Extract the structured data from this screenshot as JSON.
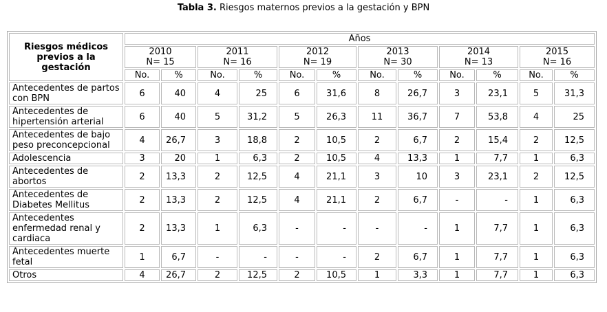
{
  "caption": {
    "label": "Tabla 3.",
    "text": " Riesgos maternos previos a la gestación y BPN"
  },
  "table": {
    "corner_header": "Riesgos médicos previos a la gestación",
    "group_header": "Años",
    "years": [
      {
        "year": "2010",
        "n": "N= 15"
      },
      {
        "year": "2011",
        "n": "N= 16"
      },
      {
        "year": "2012",
        "n": "N= 19"
      },
      {
        "year": "2013",
        "n": "N= 30"
      },
      {
        "year": "2014",
        "n": "N= 13"
      },
      {
        "year": "2015",
        "n": "N= 16"
      }
    ],
    "sub_headers": {
      "count": "No.",
      "percent": "%"
    },
    "rows": [
      {
        "label": "Antecedentes  de partos con BPN",
        "cells": [
          "6",
          "40",
          "4",
          "25",
          "6",
          "31,6",
          "8",
          "26,7",
          "3",
          "23,1",
          "5",
          "31,3"
        ]
      },
      {
        "label": "Antecedentes de hipertensión arterial",
        "cells": [
          "6",
          "40",
          "5",
          "31,2",
          "5",
          "26,3",
          "11",
          "36,7",
          "7",
          "53,8",
          "4",
          "25"
        ]
      },
      {
        "label": "Antecedentes de bajo peso preconcepcional",
        "cells": [
          "4",
          "26,7",
          "3",
          "18,8",
          "2",
          "10,5",
          "2",
          "6,7",
          "2",
          "15,4",
          "2",
          "12,5"
        ]
      },
      {
        "label": "Adolescencia",
        "cells": [
          "3",
          "20",
          "1",
          "6,3",
          "2",
          "10,5",
          "4",
          "13,3",
          "1",
          "7,7",
          "1",
          "6,3"
        ]
      },
      {
        "label": "Antecedentes de abortos",
        "cells": [
          "2",
          "13,3",
          "2",
          "12,5",
          "4",
          "21,1",
          "3",
          "10",
          "3",
          "23,1",
          "2",
          "12,5"
        ]
      },
      {
        "label": "Antecedentes de Diabetes Mellitus",
        "cells": [
          "2",
          "13,3",
          "2",
          "12,5",
          "4",
          "21,1",
          "2",
          "6,7",
          "-",
          "-",
          "1",
          "6,3"
        ]
      },
      {
        "label": "Antecedentes enfermedad renal y cardiaca",
        "cells": [
          "2",
          "13,3",
          "1",
          "6,3",
          "-",
          "-",
          "-",
          "-",
          "1",
          "7,7",
          "1",
          "6,3"
        ]
      },
      {
        "label": "Antecedentes muerte fetal",
        "cells": [
          "1",
          "6,7",
          "-",
          "-",
          "-",
          "-",
          "2",
          "6,7",
          "1",
          "7,7",
          "1",
          "6,3"
        ]
      },
      {
        "label": "Otros",
        "cells": [
          "4",
          "26,7",
          "2",
          "12,5",
          "2",
          "10,5",
          "1",
          "3,3",
          "1",
          "7,7",
          "1",
          "6,3"
        ]
      }
    ]
  }
}
